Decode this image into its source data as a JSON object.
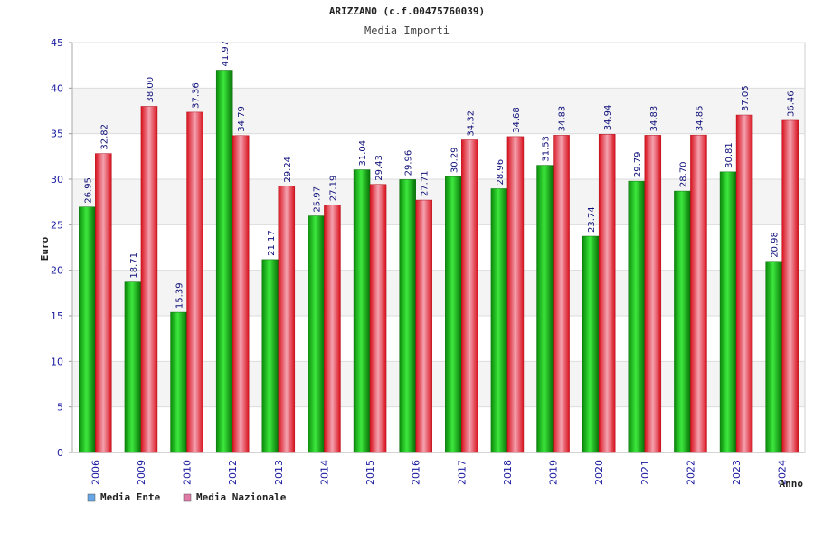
{
  "chart_data": {
    "type": "bar",
    "title": "ARIZZANO (c.f.00475760039)",
    "subtitle": "Media Importi",
    "ylabel": "Euro",
    "xlabel": "Anno",
    "ylim": [
      0,
      45
    ],
    "yticks": [
      "0",
      "5",
      "10",
      "15",
      "20",
      "25",
      "30",
      "35",
      "40",
      "45"
    ],
    "grid": true,
    "legend_position": "bottom-left",
    "categories": [
      "2006",
      "2009",
      "2010",
      "2012",
      "2013",
      "2014",
      "2015",
      "2016",
      "2017",
      "2018",
      "2019",
      "2020",
      "2021",
      "2022",
      "2023",
      "2024"
    ],
    "series": [
      {
        "name": "Media Ente",
        "color": "#22c022",
        "legend_color": "#66a6e6",
        "values": [
          26.95,
          18.71,
          15.39,
          41.97,
          21.17,
          25.97,
          31.04,
          29.96,
          30.29,
          28.96,
          31.53,
          23.74,
          29.79,
          28.7,
          30.81,
          20.98
        ],
        "labels": [
          "26.95",
          "18.71",
          "15.39",
          "41.97",
          "21.17",
          "25.97",
          "31.04",
          "29.96",
          "30.29",
          "28.96",
          "31.53",
          "23.74",
          "29.79",
          "28.70",
          "30.81",
          "20.98"
        ]
      },
      {
        "name": "Media Nazionale",
        "color": "#e8343f",
        "legend_color": "#e07aa6",
        "values": [
          32.82,
          38.0,
          37.36,
          34.79,
          29.24,
          27.19,
          29.43,
          27.71,
          34.32,
          34.68,
          34.83,
          34.94,
          34.83,
          34.85,
          37.05,
          36.46
        ],
        "labels": [
          "32.82",
          "38.00",
          "37.36",
          "34.79",
          "29.24",
          "27.19",
          "29.43",
          "27.71",
          "34.32",
          "34.68",
          "34.83",
          "34.94",
          "34.83",
          "34.85",
          "37.05",
          "36.46"
        ]
      }
    ]
  }
}
